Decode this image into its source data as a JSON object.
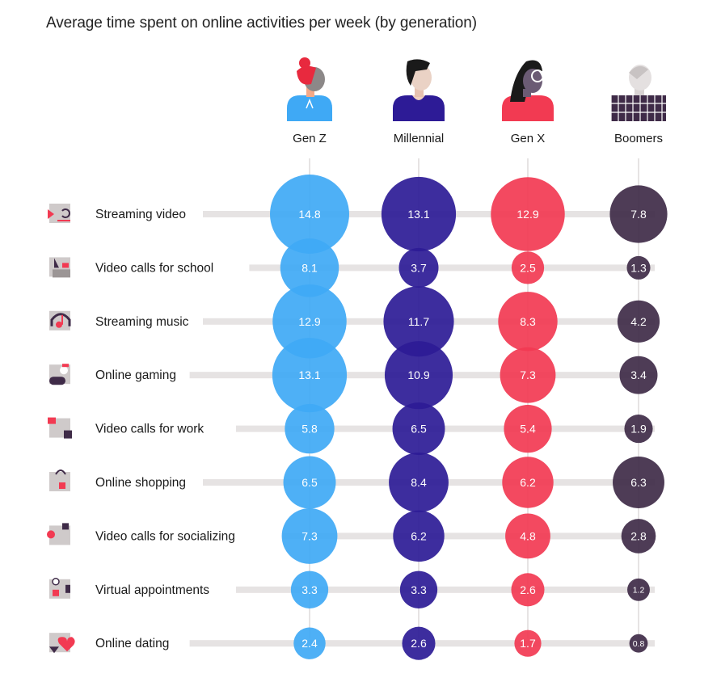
{
  "title": "Average time spent on online activities per week (by generation)",
  "colors": {
    "Gen Z": "#3fa9f5",
    "Millennial": "#2d1b96",
    "Gen X": "#f23a52",
    "Boomers": "#3f2b48",
    "track": "#e6e3e3",
    "connector": "#e6e3e3"
  },
  "avatars": [
    {
      "name": "Gen Z",
      "icon": "red-haired-person-icon"
    },
    {
      "name": "Millennial",
      "icon": "dark-haired-person-icon"
    },
    {
      "name": "Gen X",
      "icon": "glasses-person-icon"
    },
    {
      "name": "Boomers",
      "icon": "grey-haired-person-icon"
    }
  ],
  "chart_data": {
    "type": "bubble",
    "title": "Average time spent on online activities per week (by generation)",
    "series": [
      {
        "name": "Gen Z",
        "values": [
          14.8,
          8.1,
          12.9,
          13.1,
          5.8,
          6.5,
          7.3,
          3.3,
          2.4
        ],
        "labels": [
          "14.8",
          "8.1",
          "12.9",
          "13.1",
          "5.8",
          "6.5",
          "7.3",
          "3.3",
          "2.4"
        ]
      },
      {
        "name": "Millennial",
        "values": [
          13.1,
          3.7,
          11.7,
          10.9,
          6.5,
          8.4,
          6.2,
          3.3,
          2.6
        ],
        "labels": [
          "13.1",
          "3.7",
          "11.7",
          "10.9",
          "6.5",
          "8.4",
          "6.2",
          "3.3",
          "2.6"
        ]
      },
      {
        "name": "Gen X",
        "values": [
          12.9,
          2.5,
          8.3,
          7.3,
          5.4,
          6.2,
          4.8,
          2.6,
          1.7
        ],
        "labels": [
          "12.9",
          "2.5",
          "8.3",
          "7.3",
          "5.4",
          "6.2",
          "4.8",
          "2.6",
          "1.7"
        ]
      },
      {
        "name": "Boomers",
        "values": [
          7.8,
          1.3,
          4.2,
          3.4,
          1.9,
          6.3,
          2.8,
          1.2,
          0.8
        ],
        "labels": [
          "7.8",
          "1.3",
          "4.2",
          "3.4",
          "1.9",
          "6.3",
          "2.8",
          "1.2",
          "0.8"
        ]
      }
    ],
    "categories": [
      {
        "label": "Streaming video",
        "icon": "streaming-video-icon"
      },
      {
        "label": "Video calls for school",
        "icon": "video-call-school-icon"
      },
      {
        "label": "Streaming music",
        "icon": "headphones-music-icon"
      },
      {
        "label": "Online gaming",
        "icon": "game-controller-icon"
      },
      {
        "label": "Video calls for work",
        "icon": "video-call-work-icon"
      },
      {
        "label": "Online shopping",
        "icon": "shopping-bag-icon"
      },
      {
        "label": "Video calls for socializing",
        "icon": "video-call-social-icon"
      },
      {
        "label": "Virtual appointments",
        "icon": "virtual-appointment-icon"
      },
      {
        "label": "Online dating",
        "icon": "heart-dating-icon"
      }
    ]
  }
}
